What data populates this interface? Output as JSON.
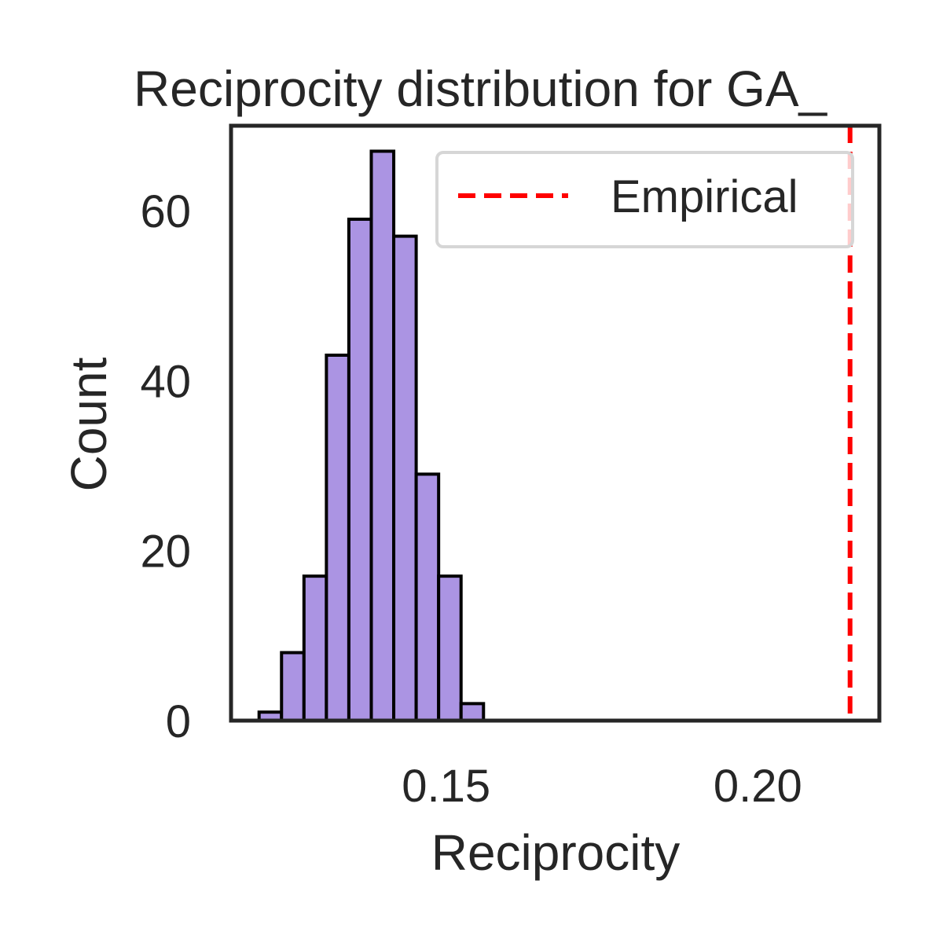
{
  "chart_data": {
    "type": "bar",
    "title": "Reciprocity distribution for GA_",
    "xlabel": "Reciprocity",
    "ylabel": "Count",
    "xlim": [
      0.1155,
      0.2195
    ],
    "ylim": [
      0,
      70
    ],
    "x_ticks": [
      {
        "value": 0.15,
        "label": "0.15"
      },
      {
        "value": 0.2,
        "label": "0.20"
      }
    ],
    "y_ticks": [
      {
        "value": 0,
        "label": "0"
      },
      {
        "value": 20,
        "label": "20"
      },
      {
        "value": 40,
        "label": "40"
      },
      {
        "value": 60,
        "label": "60"
      }
    ],
    "bin_width": 0.0036,
    "bins": [
      {
        "x0": 0.12,
        "count": 1
      },
      {
        "x0": 0.1236,
        "count": 8
      },
      {
        "x0": 0.1272,
        "count": 17
      },
      {
        "x0": 0.1308,
        "count": 43
      },
      {
        "x0": 0.1344,
        "count": 59
      },
      {
        "x0": 0.138,
        "count": 67
      },
      {
        "x0": 0.1416,
        "count": 57
      },
      {
        "x0": 0.1452,
        "count": 29
      },
      {
        "x0": 0.1488,
        "count": 17
      },
      {
        "x0": 0.1524,
        "count": 2
      }
    ],
    "bar_color": "#ab94e3",
    "bar_edge_color": "#000000",
    "reference_line": {
      "x": 0.2148,
      "label": "Empirical",
      "color": "#ff0000",
      "style": "dashed"
    },
    "legend_position": "top-right",
    "grid": false
  }
}
